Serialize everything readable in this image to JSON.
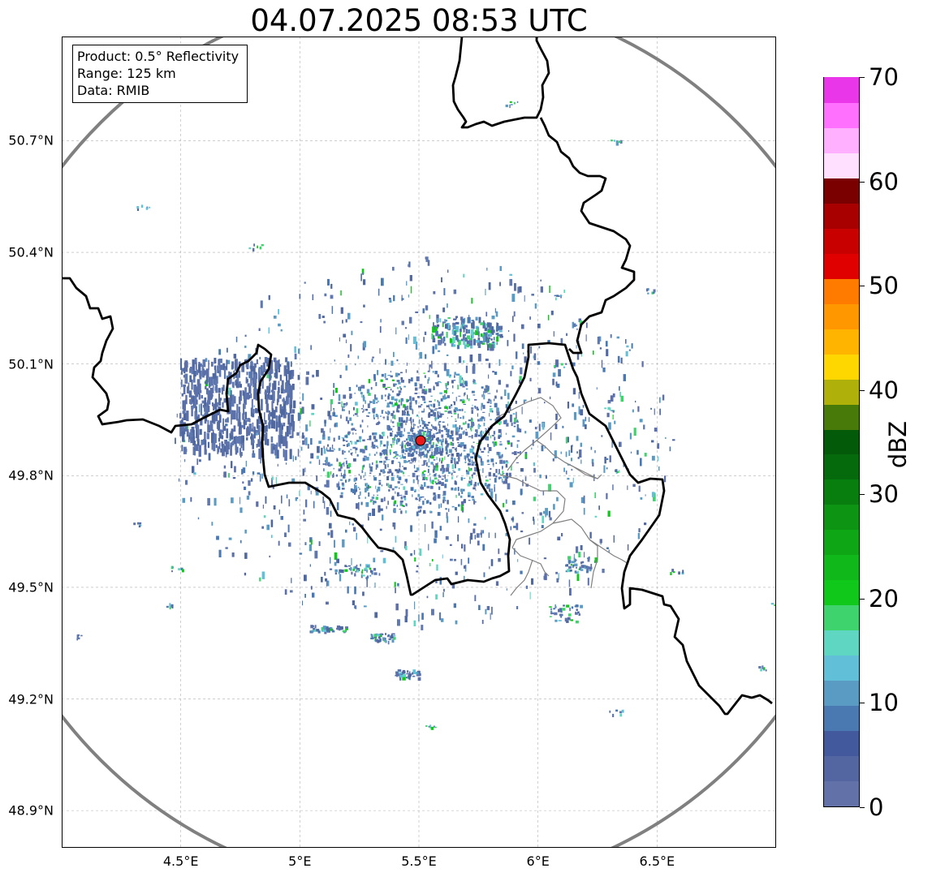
{
  "title": "04.07.2025 08:53 UTC",
  "info_box": {
    "line1": "Product: 0.5° Reflectivity",
    "line2": "Range: 125 km",
    "line3": "Data: RMIB"
  },
  "map": {
    "lon_range": [
      4.0,
      7.0
    ],
    "lat_range": [
      48.8,
      50.98
    ],
    "lon_ticks": [
      "4.5°E",
      "5°E",
      "5.5°E",
      "6°E",
      "6.5°E"
    ],
    "lon_tick_values": [
      4.5,
      5.0,
      5.5,
      6.0,
      6.5
    ],
    "lat_ticks": [
      "50.7°N",
      "50.4°N",
      "50.1°N",
      "49.8°N",
      "49.5°N",
      "49.2°N",
      "48.9°N"
    ],
    "lat_tick_values": [
      50.7,
      50.4,
      50.1,
      49.8,
      49.5,
      49.2,
      48.9
    ],
    "gridlines": true,
    "radar_site": {
      "lon": 5.505,
      "lat": 49.914,
      "marker_color": "#e8191b"
    },
    "range_ring_km": 125,
    "colors": {
      "border": "#000000",
      "range_ring": "#808080",
      "admin_lines": "#808080",
      "grid": "#b0b0b0"
    }
  },
  "colorbar": {
    "label": "dBZ",
    "range": [
      0,
      70
    ],
    "ticks": [
      "0",
      "10",
      "20",
      "30",
      "40",
      "50",
      "60",
      "70"
    ],
    "tick_values": [
      0,
      10,
      20,
      30,
      40,
      50,
      60,
      70
    ],
    "bands": [
      "#6272a8",
      "#5466a2",
      "#42599e",
      "#4a79b2",
      "#5a9bc4",
      "#62bfd8",
      "#5fd6c1",
      "#3fd36e",
      "#10c81a",
      "#10b81a",
      "#0ea615",
      "#0c9412",
      "#087e0f",
      "#056a0b",
      "#035a08",
      "#487a0a",
      "#b0b00a",
      "#ffd700",
      "#ffb400",
      "#ff9700",
      "#ff7b00",
      "#e00000",
      "#c80000",
      "#a80000",
      "#7a0000",
      "#ffe0ff",
      "#ffb0ff",
      "#ff70ff",
      "#e836e8"
    ]
  }
}
